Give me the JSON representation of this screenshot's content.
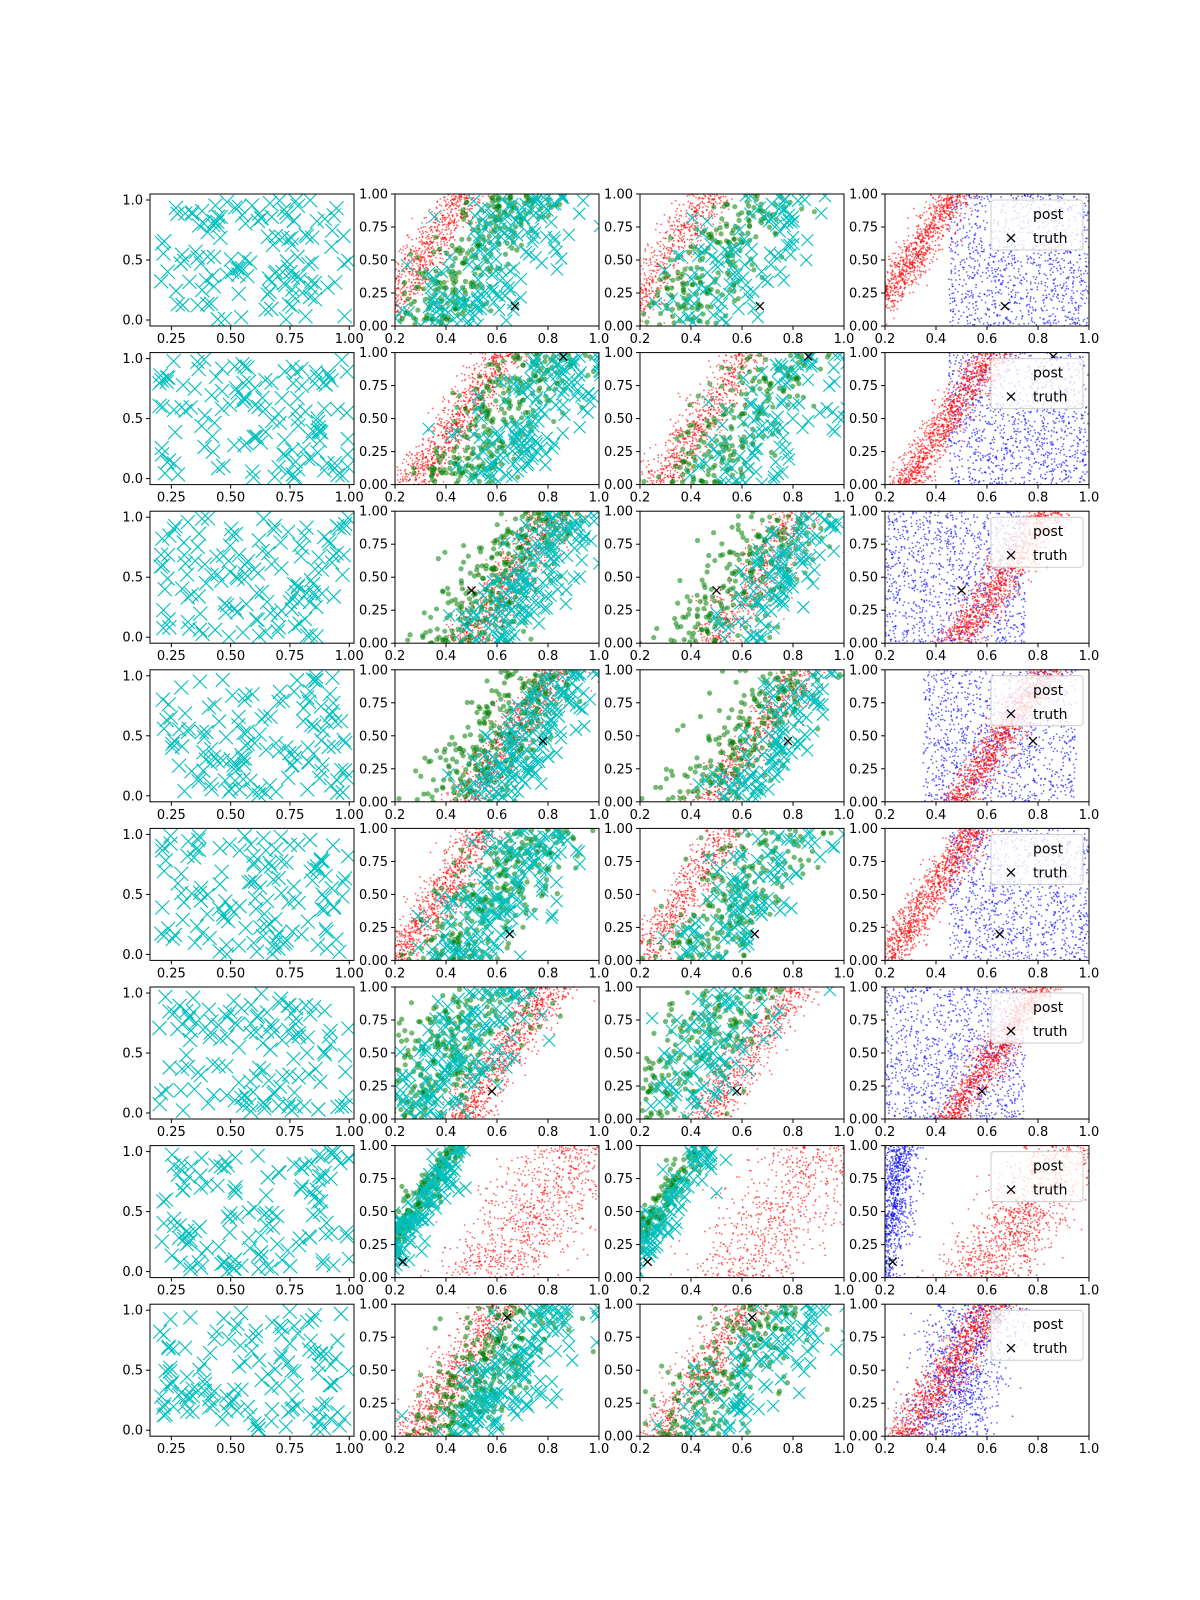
{
  "figure": {
    "rows": 8,
    "cols": 4
  },
  "colors": {
    "prior": "#00bfbf",
    "samples": "#008000",
    "posterior_a": "#ff0000",
    "posterior_b": "#0000ff",
    "truth": "#000000"
  },
  "legend": {
    "post_label": "post",
    "truth_label": "truth",
    "location": "upper right"
  },
  "axes": {
    "col0_xticks": [
      "0.25",
      "0.50",
      "0.75",
      "1.00"
    ],
    "col0_xtick_values": [
      0.25,
      0.5,
      0.75,
      1.0
    ],
    "col0_yticks": [
      "0.0",
      "0.5",
      "1.0"
    ],
    "col0_ytick_values": [
      0.0,
      0.5,
      1.0
    ],
    "col0_xlim": [
      0.16,
      1.02
    ],
    "col0_ylim": [
      -0.05,
      1.05
    ],
    "xticks": [
      "0.2",
      "0.4",
      "0.6",
      "0.8",
      "1.0"
    ],
    "xtick_values": [
      0.2,
      0.4,
      0.6,
      0.8,
      1.0
    ],
    "yticks": [
      "0.00",
      "0.25",
      "0.50",
      "0.75",
      "1.00"
    ],
    "ytick_values": [
      0.0,
      0.25,
      0.5,
      0.75,
      1.0
    ],
    "xlim": [
      0.2,
      1.0
    ],
    "ylim": [
      0.0,
      1.0
    ]
  },
  "chart_data": {
    "type": "scatter",
    "grid": false,
    "rows": [
      {
        "truth": [
          0.67,
          0.15
        ],
        "red_band": [
          0.3,
          0.05
        ],
        "blue_region": "right",
        "green_band": [
          0.5,
          0.09
        ],
        "cyan_band": [
          0.6,
          0.12
        ],
        "legend": true
      },
      {
        "truth": [
          0.86,
          0.97
        ],
        "red_band": [
          0.45,
          0.05
        ],
        "blue_region": "right",
        "green_band": [
          0.6,
          0.1
        ],
        "cyan_band": [
          0.72,
          0.12
        ],
        "legend": true
      },
      {
        "truth": [
          0.5,
          0.4
        ],
        "red_band": [
          0.66,
          0.06
        ],
        "blue_region": "left",
        "green_band": [
          0.6,
          0.1
        ],
        "cyan_band": [
          0.74,
          0.08
        ],
        "legend": true
      },
      {
        "truth": [
          0.78,
          0.46
        ],
        "red_band": [
          0.66,
          0.05
        ],
        "blue_region": "wide",
        "green_band": [
          0.6,
          0.1
        ],
        "cyan_band": [
          0.74,
          0.08
        ],
        "legend": true
      },
      {
        "truth": [
          0.65,
          0.2
        ],
        "red_band": [
          0.38,
          0.05
        ],
        "blue_region": "right",
        "green_band": [
          0.58,
          0.1
        ],
        "cyan_band": [
          0.62,
          0.1
        ],
        "legend": true
      },
      {
        "truth": [
          0.58,
          0.21
        ],
        "red_band": [
          0.63,
          0.05
        ],
        "blue_region": "left",
        "green_band": [
          0.4,
          0.12
        ],
        "cyan_band": [
          0.45,
          0.12
        ],
        "legend": true
      },
      {
        "truth": [
          0.23,
          0.12
        ],
        "red_band": [
          0.75,
          0.12
        ],
        "blue_region": "narrow-left",
        "green_band": [
          0.26,
          0.03
        ],
        "cyan_band": [
          0.3,
          0.04
        ],
        "legend": true
      },
      {
        "truth": [
          0.64,
          0.9
        ],
        "red_band": [
          0.45,
          0.06
        ],
        "blue_region": "around",
        "green_band": [
          0.55,
          0.1
        ],
        "cyan_band": [
          0.66,
          0.1
        ],
        "legend": true
      }
    ]
  }
}
